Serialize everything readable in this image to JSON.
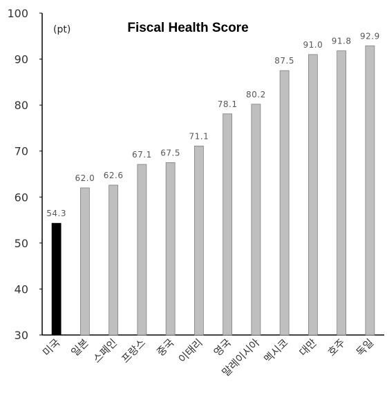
{
  "chart_data": {
    "type": "bar",
    "title": "Fiscal Health Score",
    "unit_label": "(pt)",
    "categories": [
      "미국",
      "일본",
      "스페인",
      "프랑스",
      "중국",
      "이태리",
      "영국",
      "말레이시아",
      "멕시코",
      "대만",
      "호주",
      "독일"
    ],
    "values": [
      54.3,
      62.0,
      62.6,
      67.1,
      67.5,
      71.1,
      78.1,
      80.2,
      87.5,
      91.0,
      91.8,
      92.9
    ],
    "value_labels": [
      "54.3",
      "62.0",
      "62.6",
      "67.1",
      "67.5",
      "71.1",
      "78.1",
      "80.2",
      "87.5",
      "91.0",
      "91.8",
      "92.9"
    ],
    "y_ticks": [
      "30",
      "40",
      "50",
      "60",
      "70",
      "80",
      "90",
      "100"
    ],
    "ylim": [
      30,
      100
    ],
    "highlight_category": "미국",
    "colors": {
      "highlight": "#000000",
      "bar": "#bfbfbf",
      "bar_edge": "#7f7f7f",
      "axis": "#000000"
    },
    "grid": false,
    "legend": "none"
  }
}
